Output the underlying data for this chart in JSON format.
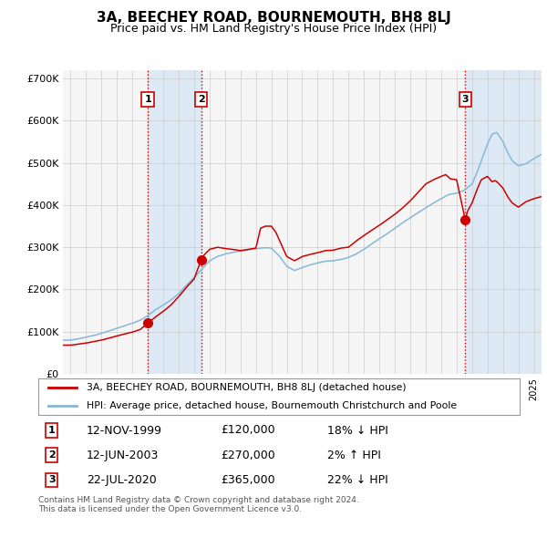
{
  "title": "3A, BEECHEY ROAD, BOURNEMOUTH, BH8 8LJ",
  "subtitle": "Price paid vs. HM Land Registry's House Price Index (HPI)",
  "legend_line1": "3A, BEECHEY ROAD, BOURNEMOUTH, BH8 8LJ (detached house)",
  "legend_line2": "HPI: Average price, detached house, Bournemouth Christchurch and Poole",
  "footer": "Contains HM Land Registry data © Crown copyright and database right 2024.\nThis data is licensed under the Open Government Licence v3.0.",
  "transactions": [
    {
      "num": 1,
      "date": "12-NOV-1999",
      "price": "£120,000",
      "hpi_diff": "18% ↓ HPI",
      "year": 2000.0
    },
    {
      "num": 2,
      "date": "12-JUN-2003",
      "price": "£270,000",
      "hpi_diff": "2% ↑ HPI",
      "year": 2003.45
    },
    {
      "num": 3,
      "date": "22-JUL-2020",
      "price": "£365,000",
      "hpi_diff": "22% ↓ HPI",
      "year": 2020.56
    }
  ],
  "hpi_color": "#85b8d8",
  "price_color": "#cc0000",
  "dot_color": "#cc0000",
  "shade_color": "#ddeaf5",
  "grid_color": "#cccccc",
  "bg_color": "#ffffff",
  "chart_bg": "#f8f8f8",
  "xlim": [
    1994.5,
    2025.5
  ],
  "ylim": [
    0,
    720000
  ],
  "yticks": [
    0,
    100000,
    200000,
    300000,
    400000,
    500000,
    600000,
    700000
  ],
  "ytick_labels": [
    "£0",
    "£100K",
    "£200K",
    "£300K",
    "£400K",
    "£500K",
    "£600K",
    "£700K"
  ]
}
